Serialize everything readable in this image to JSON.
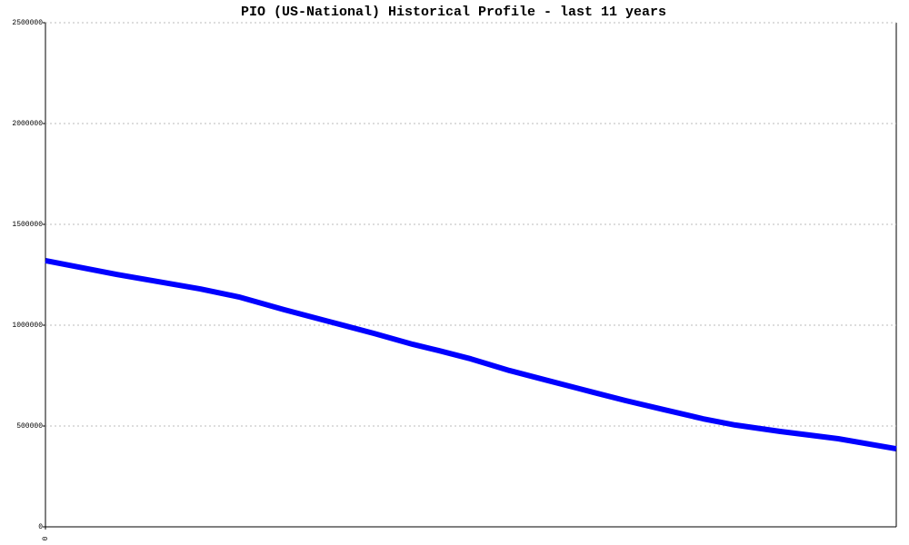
{
  "chart_data": {
    "type": "line",
    "title": "PIO (US-National) Historical Profile - last 11 years",
    "x": [
      0,
      11,
      24,
      30,
      37,
      44,
      51,
      57,
      61,
      66,
      72,
      78,
      85,
      90,
      96,
      102,
      107,
      114,
      123,
      132
    ],
    "series": [
      {
        "color": "#0000ff",
        "values": [
          1320000,
          1252000,
          1180000,
          1140000,
          1077000,
          1018000,
          959000,
          905000,
          874000,
          833000,
          775000,
          725000,
          667000,
          626000,
          581000,
          536000,
          505000,
          473000,
          437000,
          387000
        ]
      }
    ],
    "xlim": [
      0,
      132
    ],
    "xticks": [
      0
    ],
    "ylim": [
      0,
      2500000
    ],
    "yticks": [
      0,
      500000,
      1000000,
      1500000,
      2000000,
      2500000
    ],
    "grid": true
  }
}
